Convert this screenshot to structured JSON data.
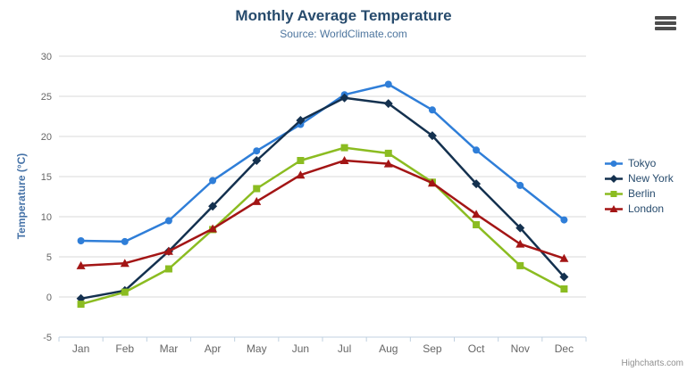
{
  "header": {
    "title": "Monthly Average Temperature",
    "subtitle": "Source: WorldClimate.com"
  },
  "export_menu": {
    "icon": "hamburger-icon"
  },
  "credit": {
    "label": "Highcharts.com"
  },
  "theme": {
    "title_color": "#274b6d",
    "subtitle_color": "#4d759e",
    "axis_label_color": "#666666",
    "axis_title_color": "#4572a7",
    "legend_text_color": "#274b6d",
    "grid_color": "#d8d8d8",
    "axis_line_color": "#c0d0e0",
    "credit_color": "#909090",
    "background": "#ffffff"
  },
  "chart_data": {
    "type": "line",
    "title": "Monthly Average Temperature",
    "subtitle": "Source: WorldClimate.com",
    "categories": [
      "Jan",
      "Feb",
      "Mar",
      "Apr",
      "May",
      "Jun",
      "Jul",
      "Aug",
      "Sep",
      "Oct",
      "Nov",
      "Dec"
    ],
    "xlabel": "",
    "ylabel": "Temperature (°C)",
    "ylim": [
      -5,
      30
    ],
    "yticks": [
      30,
      25,
      20,
      15,
      10,
      5,
      0,
      -5
    ],
    "grid": true,
    "legend_position": "right",
    "series": [
      {
        "name": "Tokyo",
        "color": "#2f7ed8",
        "marker": "circle",
        "values": [
          7.0,
          6.9,
          9.5,
          14.5,
          18.2,
          21.5,
          25.2,
          26.5,
          23.3,
          18.3,
          13.9,
          9.6
        ]
      },
      {
        "name": "New York",
        "color": "#14314f",
        "marker": "diamond",
        "values": [
          -0.2,
          0.8,
          5.7,
          11.3,
          17.0,
          22.0,
          24.8,
          24.1,
          20.1,
          14.1,
          8.6,
          2.5
        ]
      },
      {
        "name": "Berlin",
        "color": "#8bbc21",
        "marker": "square",
        "values": [
          -0.9,
          0.6,
          3.5,
          8.4,
          13.5,
          17.0,
          18.6,
          17.9,
          14.3,
          9.0,
          3.9,
          1.0
        ]
      },
      {
        "name": "London",
        "color": "#a31515",
        "marker": "triangle",
        "values": [
          3.9,
          4.2,
          5.7,
          8.5,
          11.9,
          15.2,
          17.0,
          16.6,
          14.2,
          10.3,
          6.6,
          4.8
        ]
      }
    ]
  }
}
